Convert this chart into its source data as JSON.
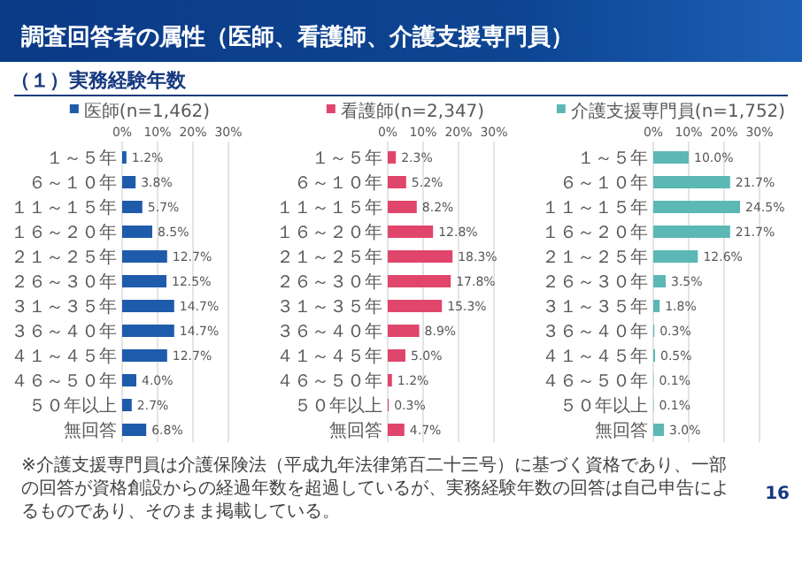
{
  "chart_data": [
    {
      "type": "bar",
      "orientation": "horizontal",
      "title": "調査回答者の属性（医師、看護師、介護支援専門員）",
      "subtitle": "（１）実務経験年数",
      "categories": [
        "１～５年",
        "６～１０年",
        "１１～１５年",
        "１６～２０年",
        "２１～２５年",
        "２６～３０年",
        "３１～３５年",
        "３６～４０年",
        "４１～４５年",
        "４６～５０年",
        "５０年以上",
        "無回答"
      ],
      "series": [
        {
          "name": "医師(n=1,462)",
          "color": "#1f5bab",
          "values": [
            1.2,
            3.8,
            5.7,
            8.5,
            12.7,
            12.5,
            14.7,
            14.7,
            12.7,
            4.0,
            2.7,
            6.8
          ],
          "value_labels": [
            "1.2%",
            "3.8%",
            "5.7%",
            "8.5%",
            "12.7%",
            "12.5%",
            "14.7%",
            "14.7%",
            "12.7%",
            "4.0%",
            "2.7%",
            "6.8%"
          ]
        }
      ],
      "xlim": [
        0,
        30
      ],
      "xticks": [
        {
          "value": 0,
          "label": "0%"
        },
        {
          "value": 10,
          "label": "10%"
        },
        {
          "value": 20,
          "label": "20%"
        },
        {
          "value": 30,
          "label": "30%"
        }
      ],
      "grid": "x",
      "legend": "top"
    },
    {
      "type": "bar",
      "orientation": "horizontal",
      "categories": [
        "１～５年",
        "６～１０年",
        "１１～１５年",
        "１６～２０年",
        "２１～２５年",
        "２６～３０年",
        "３１～３５年",
        "３６～４０年",
        "４１～４５年",
        "４６～５０年",
        "５０年以上",
        "無回答"
      ],
      "series": [
        {
          "name": "看護師(n=2,347)",
          "color": "#e0466c",
          "values": [
            2.3,
            5.2,
            8.2,
            12.8,
            18.3,
            17.8,
            15.3,
            8.9,
            5.0,
            1.2,
            0.3,
            4.7
          ],
          "value_labels": [
            "2.3%",
            "5.2%",
            "8.2%",
            "12.8%",
            "18.3%",
            "17.8%",
            "15.3%",
            "8.9%",
            "5.0%",
            "1.2%",
            "0.3%",
            "4.7%"
          ]
        }
      ],
      "xlim": [
        0,
        30
      ],
      "xticks": [
        {
          "value": 0,
          "label": "0%"
        },
        {
          "value": 10,
          "label": "10%"
        },
        {
          "value": 20,
          "label": "20%"
        },
        {
          "value": 30,
          "label": "30%"
        }
      ],
      "grid": "x",
      "legend": "top"
    },
    {
      "type": "bar",
      "orientation": "horizontal",
      "categories": [
        "１～５年",
        "６～１０年",
        "１１～１５年",
        "１６～２０年",
        "２１～２５年",
        "２６～３０年",
        "３１～３５年",
        "３６～４０年",
        "４１～４５年",
        "４６～５０年",
        "５０年以上",
        "無回答"
      ],
      "series": [
        {
          "name": "介護支援専門員(n=1,752)",
          "color": "#5cb8b5",
          "values": [
            10.0,
            21.7,
            24.5,
            21.7,
            12.6,
            3.5,
            1.8,
            0.3,
            0.5,
            0.1,
            0.1,
            3.0
          ],
          "value_labels": [
            "10.0%",
            "21.7%",
            "24.5%",
            "21.7%",
            "12.6%",
            "3.5%",
            "1.8%",
            "0.3%",
            "0.5%",
            "0.1%",
            "0.1%",
            "3.0%"
          ]
        }
      ],
      "xlim": [
        0,
        30
      ],
      "xticks": [
        {
          "value": 0,
          "label": "0%"
        },
        {
          "value": 10,
          "label": "10%"
        },
        {
          "value": 20,
          "label": "20%"
        },
        {
          "value": 30,
          "label": "30%"
        }
      ],
      "grid": "x",
      "legend": "top",
      "annotations": [
        "※介護支援専門員は介護保険法（平成九年法律第百二十三号）に基づく資格であり、一部の回答が資格創設からの経過年数を超過しているが、実務経験年数の回答は自己申告によるものであり、そのまま掲載している。",
        "16"
      ]
    }
  ]
}
